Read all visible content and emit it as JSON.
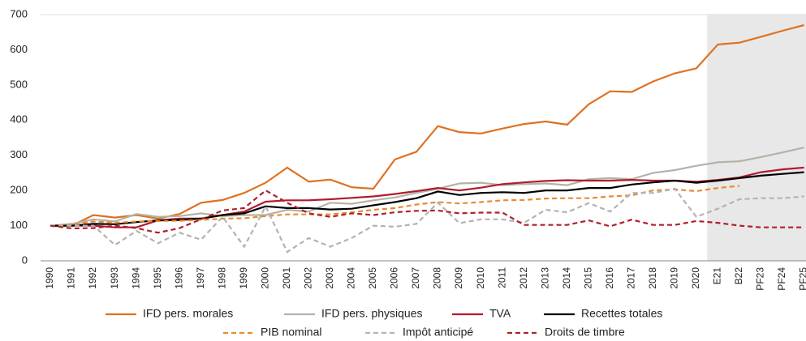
{
  "chart_data": {
    "type": "line",
    "categories": [
      "1990",
      "1991",
      "1992",
      "1993",
      "1994",
      "1995",
      "1996",
      "1997",
      "1998",
      "1999",
      "2000",
      "2001",
      "2002",
      "2003",
      "2004",
      "2005",
      "2006",
      "2007",
      "2008",
      "2009",
      "2010",
      "2011",
      "2012",
      "2013",
      "2014",
      "2015",
      "2016",
      "2017",
      "2018",
      "2019",
      "2020",
      "E21",
      "B22",
      "PF23",
      "PF24",
      "PF25"
    ],
    "ylim": [
      0,
      700
    ],
    "yticks": [
      0,
      100,
      200,
      300,
      400,
      500,
      600,
      700
    ],
    "shaded_from": 31,
    "shade_color": "#e8e8e8",
    "series": [
      {
        "name": "IFD pers. morales",
        "color": "#e07020",
        "dash": false,
        "values": [
          100,
          100,
          130,
          123,
          130,
          120,
          133,
          165,
          173,
          193,
          222,
          265,
          225,
          231,
          209,
          205,
          288,
          310,
          383,
          366,
          362,
          376,
          389,
          396,
          387,
          445,
          482,
          480,
          510,
          533,
          547,
          615,
          620,
          637,
          654,
          670
        ]
      },
      {
        "name": "IFD pers. physiques",
        "color": "#b3b3aa",
        "dash": false,
        "values": [
          100,
          105,
          118,
          112,
          133,
          125,
          127,
          135,
          127,
          130,
          130,
          145,
          140,
          165,
          162,
          172,
          180,
          193,
          205,
          220,
          222,
          215,
          218,
          220,
          215,
          232,
          235,
          232,
          250,
          258,
          270,
          280,
          283,
          295,
          308,
          322
        ]
      },
      {
        "name": "TVA",
        "color": "#b01c2e",
        "dash": false,
        "values": [
          100,
          100,
          100,
          95,
          95,
          115,
          120,
          120,
          130,
          140,
          168,
          172,
          172,
          175,
          179,
          183,
          190,
          198,
          207,
          200,
          208,
          218,
          223,
          227,
          229,
          228,
          228,
          230,
          228,
          228,
          225,
          230,
          237,
          252,
          260,
          265
        ]
      },
      {
        "name": "Recettes totales",
        "color": "#000000",
        "dash": false,
        "values": [
          100,
          100,
          105,
          104,
          110,
          115,
          116,
          120,
          130,
          135,
          155,
          150,
          150,
          146,
          148,
          158,
          167,
          178,
          197,
          187,
          193,
          195,
          193,
          200,
          200,
          207,
          207,
          217,
          223,
          228,
          222,
          228,
          235,
          242,
          247,
          252
        ]
      },
      {
        "name": "PIB nominal",
        "color": "#e88a30",
        "dash": true,
        "values": [
          100,
          103,
          112,
          108,
          112,
          113,
          114,
          116,
          120,
          121,
          127,
          132,
          132,
          132,
          138,
          145,
          150,
          160,
          167,
          163,
          167,
          172,
          173,
          177,
          178,
          178,
          183,
          186,
          200,
          203,
          198,
          207,
          213,
          null,
          null,
          null
        ]
      },
      {
        "name": "Impôt anticipé",
        "color": "#b3b3b3",
        "dash": true,
        "values": [
          100,
          100,
          100,
          45,
          85,
          50,
          80,
          60,
          125,
          40,
          155,
          25,
          65,
          40,
          65,
          100,
          97,
          105,
          165,
          107,
          118,
          118,
          108,
          145,
          138,
          164,
          140,
          193,
          193,
          205,
          125,
          148,
          175,
          178,
          178,
          183
        ]
      },
      {
        "name": "Droits de timbre",
        "color": "#b0202a",
        "dash": true,
        "values": [
          100,
          92,
          93,
          100,
          93,
          80,
          93,
          118,
          143,
          150,
          200,
          165,
          135,
          125,
          135,
          130,
          138,
          142,
          143,
          135,
          137,
          137,
          102,
          102,
          102,
          115,
          98,
          117,
          102,
          102,
          113,
          108,
          100,
          95,
          95,
          95
        ]
      }
    ]
  }
}
